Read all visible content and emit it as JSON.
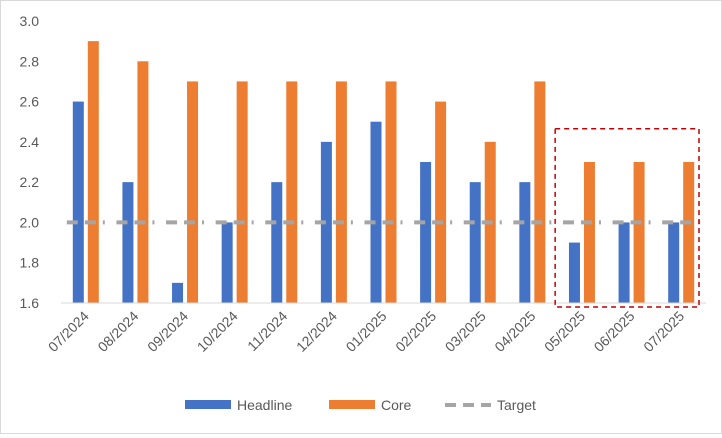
{
  "chart_data": {
    "type": "bar",
    "categories": [
      "07/2024",
      "08/2024",
      "09/2024",
      "10/2024",
      "11/2024",
      "12/2024",
      "01/2025",
      "02/2025",
      "03/2025",
      "04/2025",
      "05/2025",
      "06/2025",
      "07/2025"
    ],
    "series": [
      {
        "name": "Headline",
        "type": "bar",
        "color": "#4472C4",
        "values": [
          2.6,
          2.2,
          1.7,
          2.0,
          2.2,
          2.4,
          2.5,
          2.3,
          2.2,
          2.2,
          1.9,
          2.0,
          2.0
        ]
      },
      {
        "name": "Core",
        "type": "bar",
        "color": "#ED7D31",
        "values": [
          2.9,
          2.8,
          2.7,
          2.7,
          2.7,
          2.7,
          2.7,
          2.6,
          2.4,
          2.7,
          2.3,
          2.3,
          2.3
        ]
      },
      {
        "name": "Target",
        "type": "line",
        "style": "dashed",
        "color": "#A5A5A5",
        "values": [
          2.0,
          2.0,
          2.0,
          2.0,
          2.0,
          2.0,
          2.0,
          2.0,
          2.0,
          2.0,
          2.0,
          2.0,
          2.0
        ]
      }
    ],
    "y_ticks": [
      "1.6",
      "1.8",
      "2.0",
      "2.2",
      "2.4",
      "2.6",
      "2.8",
      "3.0"
    ],
    "ylim": [
      1.6,
      3.0
    ],
    "grid": false,
    "legend_position": "bottom",
    "highlight": {
      "categories": [
        "05/2025",
        "06/2025",
        "07/2025"
      ],
      "color": "#C00000",
      "style": "dashed"
    }
  }
}
